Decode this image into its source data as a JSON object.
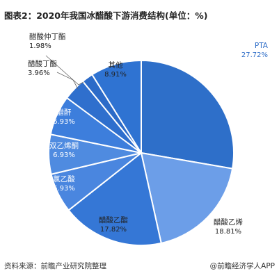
{
  "title": "图表2：2020年我国冰醋酸下游消费结构(单位：%)",
  "footer": {
    "source": "资料来源：前瞻产业研究院整理",
    "credit": "@前瞻经济学人APP"
  },
  "chart_data": {
    "type": "pie",
    "unit": "%",
    "slices": [
      {
        "name": "PTA",
        "value": 27.72
      },
      {
        "name": "醋酸乙烯",
        "value": 18.81
      },
      {
        "name": "醋酸乙酯",
        "value": 17.82
      },
      {
        "name": "氯乙酸",
        "value": 6.93
      },
      {
        "name": "双乙烯酮",
        "value": 6.93
      },
      {
        "name": "醋酐",
        "value": 6.93
      },
      {
        "name": "醋酸丁酯",
        "value": 3.96
      },
      {
        "name": "醋酸仲丁酯",
        "value": 1.98
      },
      {
        "name": "其他",
        "value": 8.91
      }
    ]
  }
}
